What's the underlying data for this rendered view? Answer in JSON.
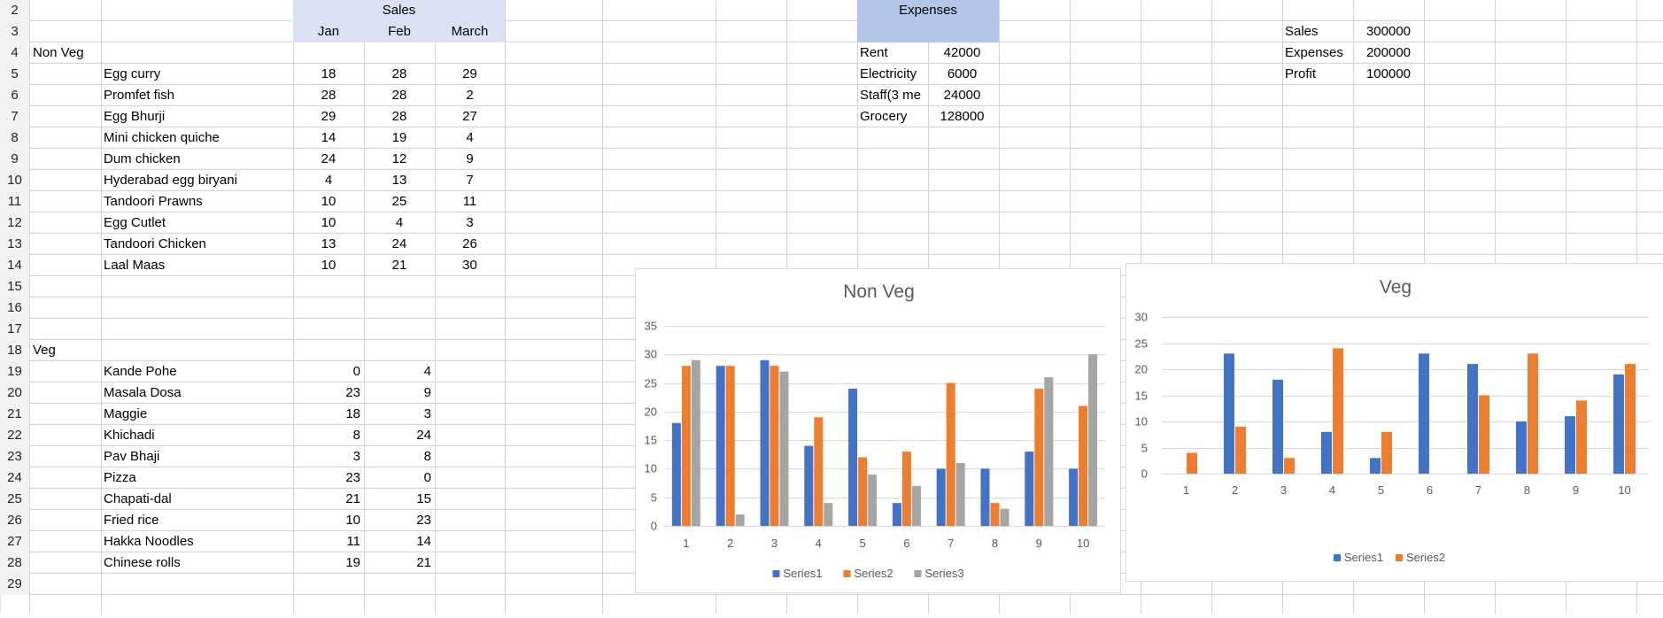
{
  "row_numbers": [
    "2",
    "3",
    "4",
    "5",
    "6",
    "7",
    "8",
    "9",
    "10",
    "11",
    "12",
    "13",
    "14",
    "15",
    "16",
    "17",
    "18",
    "19",
    "20",
    "21",
    "22",
    "23",
    "24",
    "25",
    "26",
    "27",
    "28",
    "29"
  ],
  "sales_block": {
    "header": "Sales",
    "months": [
      "Jan",
      "Feb",
      "March"
    ],
    "nonveg_label": "Non Veg",
    "nonveg_items": [
      {
        "name": "Egg curry",
        "jan": "18",
        "feb": "28",
        "mar": "29"
      },
      {
        "name": "Promfet fish",
        "jan": "28",
        "feb": "28",
        "mar": "2"
      },
      {
        "name": "Egg Bhurji",
        "jan": "29",
        "feb": "28",
        "mar": "27"
      },
      {
        "name": "Mini chicken quiche",
        "jan": "14",
        "feb": "19",
        "mar": "4"
      },
      {
        "name": "Dum chicken",
        "jan": "24",
        "feb": "12",
        "mar": "9"
      },
      {
        "name": "Hyderabad egg biryani",
        "jan": "4",
        "feb": "13",
        "mar": "7"
      },
      {
        "name": "Tandoori Prawns",
        "jan": "10",
        "feb": "25",
        "mar": "11"
      },
      {
        "name": "Egg Cutlet",
        "jan": "10",
        "feb": "4",
        "mar": "3"
      },
      {
        "name": "Tandoori Chicken",
        "jan": "13",
        "feb": "24",
        "mar": "26"
      },
      {
        "name": "Laal Maas",
        "jan": "10",
        "feb": "21",
        "mar": "30"
      }
    ],
    "veg_label": "Veg",
    "veg_items": [
      {
        "name": "Kande Pohe",
        "jan": "0",
        "feb": "4"
      },
      {
        "name": "Masala Dosa",
        "jan": "23",
        "feb": "9"
      },
      {
        "name": "Maggie",
        "jan": "18",
        "feb": "3"
      },
      {
        "name": "Khichadi",
        "jan": "8",
        "feb": "24"
      },
      {
        "name": "Pav Bhaji",
        "jan": "3",
        "feb": "8"
      },
      {
        "name": "Pizza",
        "jan": "23",
        "feb": "0"
      },
      {
        "name": "Chapati-dal",
        "jan": "21",
        "feb": "15"
      },
      {
        "name": "Fried rice",
        "jan": "10",
        "feb": "23"
      },
      {
        "name": "Hakka Noodles",
        "jan": "11",
        "feb": "14"
      },
      {
        "name": "Chinese rolls",
        "jan": "19",
        "feb": "21"
      }
    ]
  },
  "expenses_block": {
    "header": "Expenses",
    "items": [
      {
        "name": "Rent",
        "value": "42000"
      },
      {
        "name": "Electricity",
        "value": "6000"
      },
      {
        "name": "Staff(3 me",
        "value": "24000"
      },
      {
        "name": "Grocery",
        "value": "128000"
      }
    ]
  },
  "summary_block": {
    "items": [
      {
        "name": "Sales",
        "value": "300000"
      },
      {
        "name": "Expenses",
        "value": "200000"
      },
      {
        "name": "Profit",
        "value": "100000"
      }
    ]
  },
  "colors": {
    "series1": "#4472c4",
    "series2": "#ed7d31",
    "series3": "#a5a5a5",
    "sales_header_fill": "#d9e1f2",
    "expenses_header_fill": "#b4c6e7",
    "gridline": "#d9d9d9"
  },
  "chart_data": [
    {
      "type": "bar",
      "title": "Non Veg",
      "categories": [
        "1",
        "2",
        "3",
        "4",
        "5",
        "6",
        "7",
        "8",
        "9",
        "10"
      ],
      "series": [
        {
          "name": "Series1",
          "values": [
            18,
            28,
            29,
            14,
            24,
            4,
            10,
            10,
            13,
            10
          ]
        },
        {
          "name": "Series2",
          "values": [
            28,
            28,
            28,
            19,
            12,
            13,
            25,
            4,
            24,
            21
          ]
        },
        {
          "name": "Series3",
          "values": [
            29,
            2,
            27,
            4,
            9,
            7,
            11,
            3,
            26,
            30
          ]
        }
      ],
      "ylim": [
        0,
        35
      ],
      "yticks": [
        "0",
        "5",
        "10",
        "15",
        "20",
        "25",
        "30",
        "35"
      ],
      "legend": "bottom"
    },
    {
      "type": "bar",
      "title": "Veg",
      "categories": [
        "1",
        "2",
        "3",
        "4",
        "5",
        "6",
        "7",
        "8",
        "9",
        "10"
      ],
      "series": [
        {
          "name": "Series1",
          "values": [
            0,
            23,
            18,
            8,
            3,
            23,
            21,
            10,
            11,
            19
          ]
        },
        {
          "name": "Series2",
          "values": [
            4,
            9,
            3,
            24,
            8,
            0,
            15,
            23,
            14,
            21
          ]
        }
      ],
      "ylim": [
        0,
        30
      ],
      "yticks": [
        "0",
        "5",
        "10",
        "15",
        "20",
        "25",
        "30"
      ],
      "legend": "bottom"
    }
  ]
}
